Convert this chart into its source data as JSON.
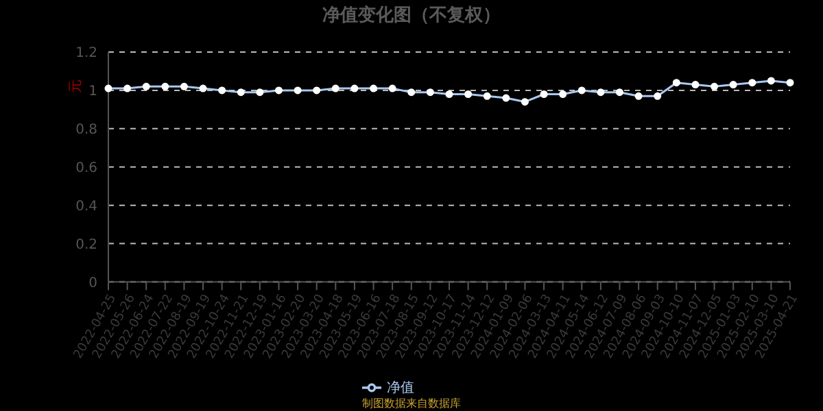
{
  "chart_data": {
    "type": "line",
    "title": "净值变化图（不复权）",
    "ylabel": "元",
    "categories": [
      "2022-04-25",
      "2022-05-26",
      "2022-06-24",
      "2022-07-22",
      "2022-08-19",
      "2022-09-19",
      "2022-10-24",
      "2022-11-21",
      "2022-12-19",
      "2023-01-16",
      "2023-02-20",
      "2023-03-20",
      "2023-04-18",
      "2023-05-19",
      "2023-06-16",
      "2023-07-18",
      "2023-08-15",
      "2023-09-12",
      "2023-10-17",
      "2023-11-14",
      "2023-12-12",
      "2024-01-09",
      "2024-02-06",
      "2024-03-13",
      "2024-04-11",
      "2024-05-14",
      "2024-06-12",
      "2024-07-09",
      "2024-08-06",
      "2024-09-03",
      "2024-10-10",
      "2024-11-07",
      "2024-12-05",
      "2025-01-03",
      "2025-02-10",
      "2025-03-10",
      "2025-04-21"
    ],
    "series": [
      {
        "name": "净值",
        "color": "#a9c8f0",
        "values": [
          1.01,
          1.01,
          1.02,
          1.02,
          1.02,
          1.01,
          1.0,
          0.99,
          0.99,
          1.0,
          1.0,
          1.0,
          1.01,
          1.01,
          1.01,
          1.01,
          0.99,
          0.99,
          0.98,
          0.98,
          0.97,
          0.96,
          0.94,
          0.98,
          0.98,
          1.0,
          0.99,
          0.99,
          0.97,
          0.97,
          1.04,
          1.03,
          1.02,
          1.03,
          1.04,
          1.05,
          1.04
        ]
      }
    ],
    "ylim": [
      0,
      1.2
    ],
    "yticks": [
      0,
      0.2,
      0.4,
      0.6,
      0.8,
      1,
      1.2
    ],
    "grid": "y",
    "legend": "bottom",
    "marker": "circle",
    "line_style": "solid",
    "annotations": [
      "制图数据来自数据库"
    ]
  }
}
